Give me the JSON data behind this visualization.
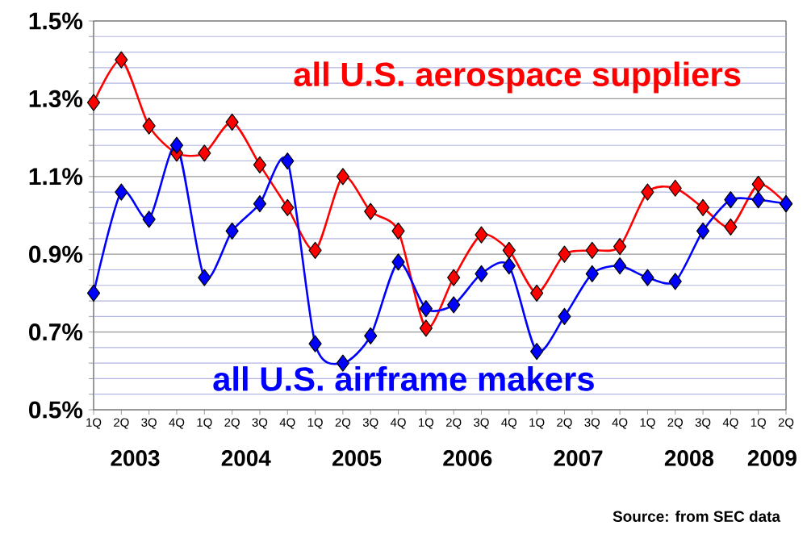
{
  "chart_data": {
    "type": "line",
    "categories": [
      "1Q",
      "2Q",
      "3Q",
      "4Q",
      "1Q",
      "2Q",
      "3Q",
      "4Q",
      "1Q",
      "2Q",
      "3Q",
      "4Q",
      "1Q",
      "2Q",
      "3Q",
      "4Q",
      "1Q",
      "2Q",
      "3Q",
      "4Q",
      "1Q",
      "2Q",
      "3Q",
      "4Q",
      "1Q",
      "2Q"
    ],
    "series": [
      {
        "name": "all U.S. aerospace suppliers",
        "color": "#ff0000",
        "values": [
          1.29,
          1.4,
          1.23,
          1.16,
          1.16,
          1.24,
          1.13,
          1.02,
          0.91,
          1.1,
          1.01,
          0.96,
          0.71,
          0.84,
          0.95,
          0.91,
          0.8,
          0.9,
          0.91,
          0.92,
          1.06,
          1.07,
          1.02,
          0.97,
          1.08,
          1.03
        ]
      },
      {
        "name": "all U.S. airframe makers",
        "color": "#0000ff",
        "values": [
          0.8,
          1.06,
          0.99,
          1.18,
          0.84,
          0.96,
          1.03,
          1.14,
          0.67,
          0.62,
          0.69,
          0.88,
          0.76,
          0.77,
          0.85,
          0.87,
          0.65,
          0.74,
          0.85,
          0.87,
          0.84,
          0.83,
          0.96,
          1.04,
          1.04,
          1.03
        ]
      }
    ],
    "ylim": [
      0.5,
      1.5
    ],
    "yticks": [
      {
        "value": 0.5,
        "label": "0.5%"
      },
      {
        "value": 0.54,
        "label": null
      },
      {
        "value": 0.58,
        "label": null
      },
      {
        "value": 0.62,
        "label": null
      },
      {
        "value": 0.66,
        "label": null
      },
      {
        "value": 0.7,
        "label": "0.7%"
      },
      {
        "value": 0.74,
        "label": null
      },
      {
        "value": 0.78,
        "label": null
      },
      {
        "value": 0.82,
        "label": null
      },
      {
        "value": 0.86,
        "label": null
      },
      {
        "value": 0.9,
        "label": "0.9%"
      },
      {
        "value": 0.94,
        "label": null
      },
      {
        "value": 0.98,
        "label": null
      },
      {
        "value": 1.02,
        "label": null
      },
      {
        "value": 1.06,
        "label": null
      },
      {
        "value": 1.1,
        "label": "1.1%"
      },
      {
        "value": 1.14,
        "label": null
      },
      {
        "value": 1.18,
        "label": null
      },
      {
        "value": 1.22,
        "label": null
      },
      {
        "value": 1.26,
        "label": null
      },
      {
        "value": 1.3,
        "label": "1.3%"
      },
      {
        "value": 1.34,
        "label": null
      },
      {
        "value": 1.38,
        "label": null
      },
      {
        "value": 1.42,
        "label": null
      },
      {
        "value": 1.46,
        "label": null
      },
      {
        "value": 1.5,
        "label": "1.5%"
      }
    ],
    "grid": "y",
    "marker": "diamond",
    "line_style": "solid",
    "annotations": [
      "2003",
      "2004",
      "2005",
      "2006",
      "2007",
      "2008",
      "2009",
      "Source: from SEC data"
    ]
  }
}
